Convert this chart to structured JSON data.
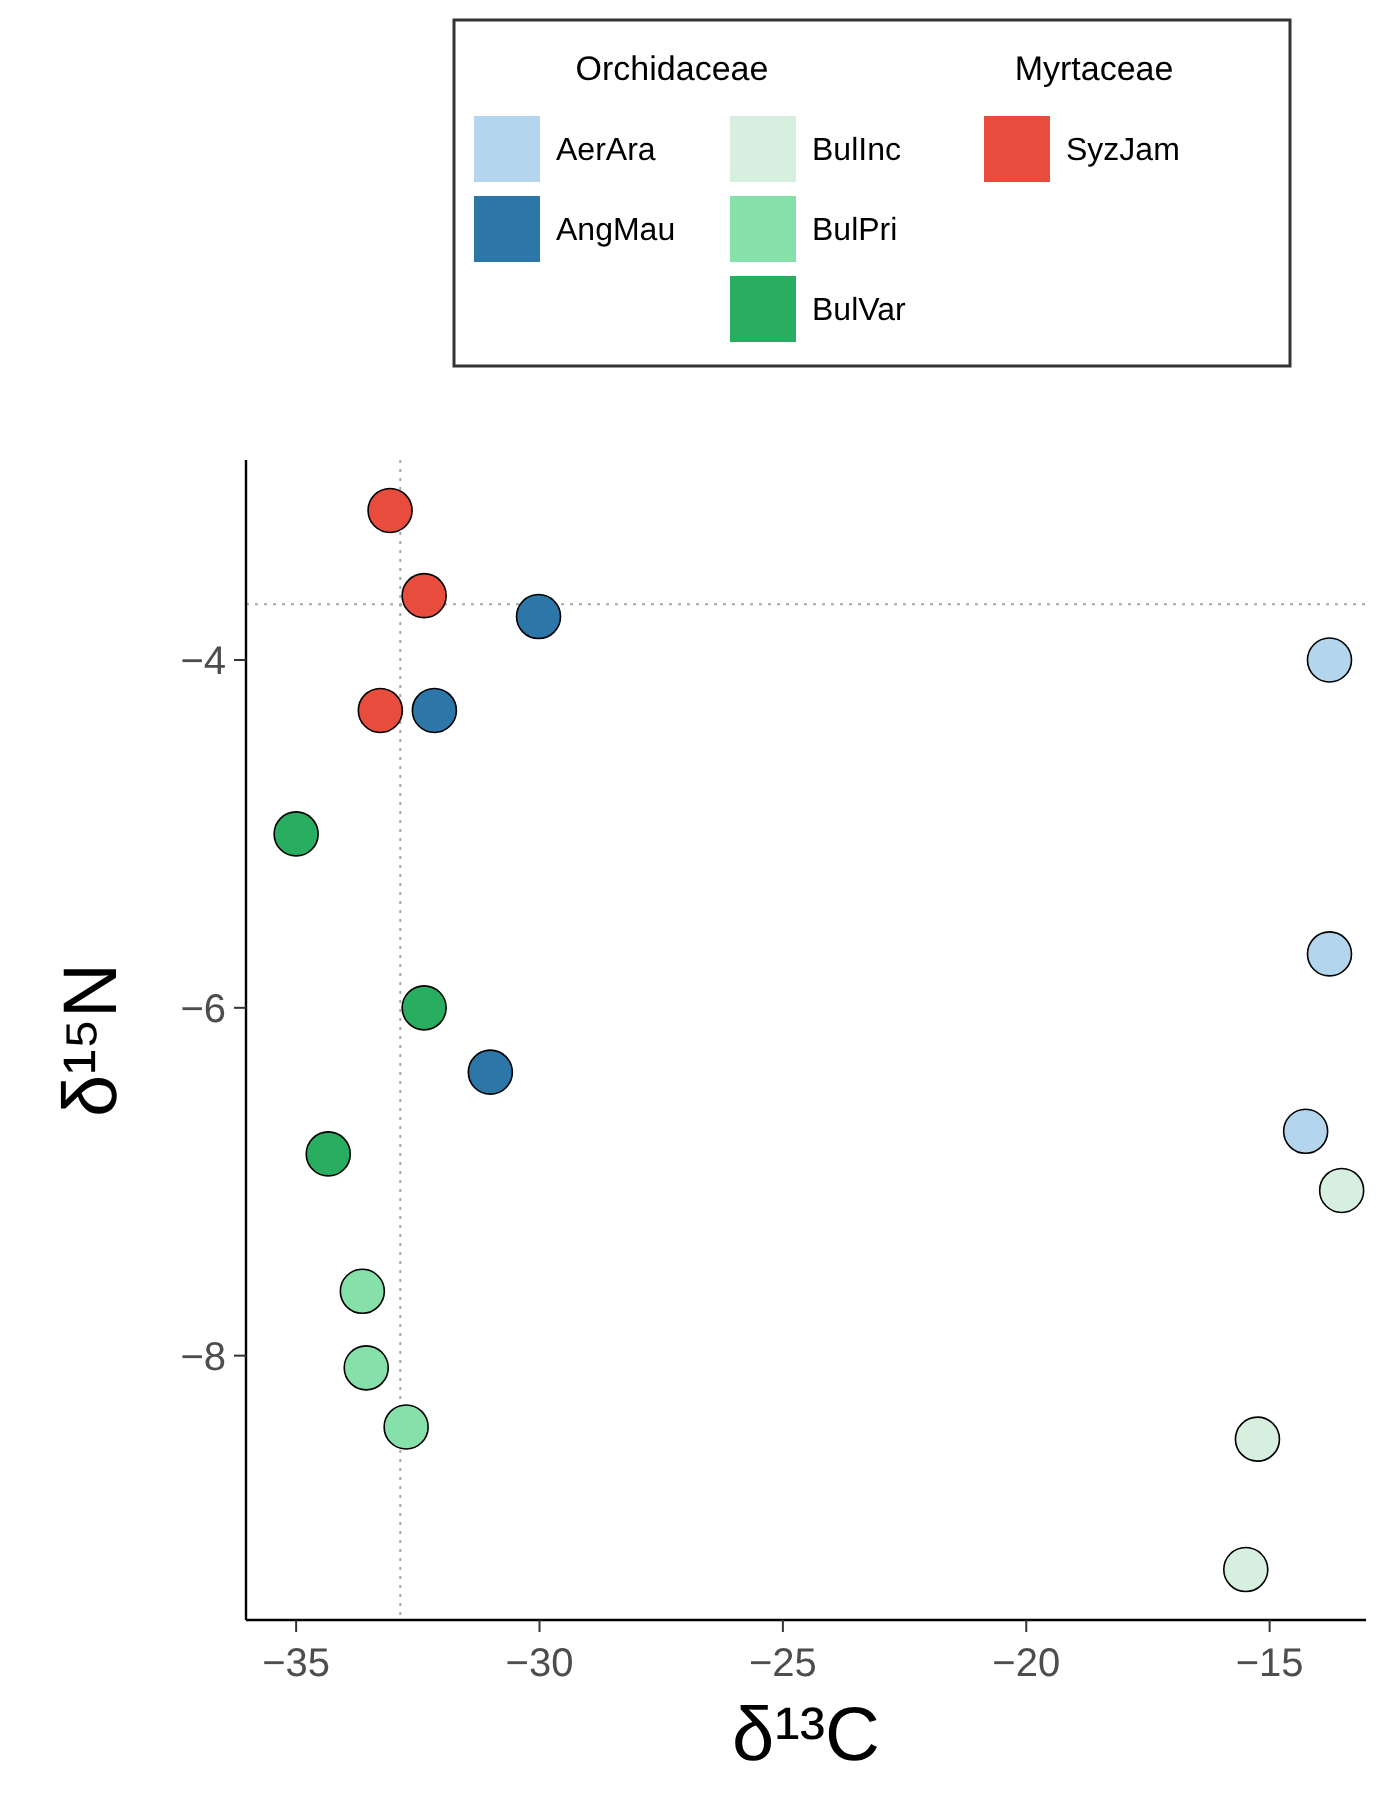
{
  "chart_data": {
    "type": "scatter",
    "xlabel": "δ¹³C",
    "ylabel": "δ¹⁵N",
    "xlim": [
      -36.03,
      -13.02
    ],
    "xticks": [
      -35,
      -30,
      -25,
      -20,
      -15
    ],
    "ylim": [
      -9.52,
      -2.85
    ],
    "yticks": [
      -8,
      -6,
      -4
    ],
    "grid": false,
    "legend": "top",
    "marker": "circle",
    "annotations": [
      "Orchidaceae",
      "Myrtaceae"
    ],
    "ref_lines": [
      {
        "axis": "x",
        "value": -32.86,
        "color": "#a6a6a6",
        "line_style": "dotted"
      },
      {
        "axis": "y",
        "value": -3.68,
        "color": "#a6a6a6",
        "line_style": "dotted"
      }
    ],
    "series": [
      {
        "name": "AerAra",
        "color": "#b3d6ee",
        "x": [
          -13.77,
          -13.77,
          -14.26
        ],
        "values": [
          -4.0,
          -5.69,
          -6.71
        ]
      },
      {
        "name": "AngMau",
        "color": "#2c76a8",
        "x": [
          -30.02,
          -32.16,
          -31.01
        ],
        "values": [
          -3.75,
          -4.29,
          -6.37
        ]
      },
      {
        "name": "BulInc",
        "color": "#d6efdf",
        "x": [
          -13.52,
          -15.25,
          -15.49
        ],
        "values": [
          -7.05,
          -8.48,
          -9.23
        ]
      },
      {
        "name": "BulPri",
        "color": "#85e0a9",
        "x": [
          -33.64,
          -33.56,
          -32.74
        ],
        "values": [
          -7.63,
          -8.07,
          -8.41
        ]
      },
      {
        "name": "BulVar",
        "color": "#29ad61",
        "x": [
          -35.0,
          -32.37,
          -34.34
        ],
        "values": [
          -5.0,
          -6.0,
          -6.84
        ]
      },
      {
        "name": "SyzJam",
        "color": "#e74c3c",
        "x": [
          -33.07,
          -32.37,
          -33.27
        ],
        "values": [
          -3.14,
          -3.63,
          -4.29
        ]
      }
    ]
  }
}
